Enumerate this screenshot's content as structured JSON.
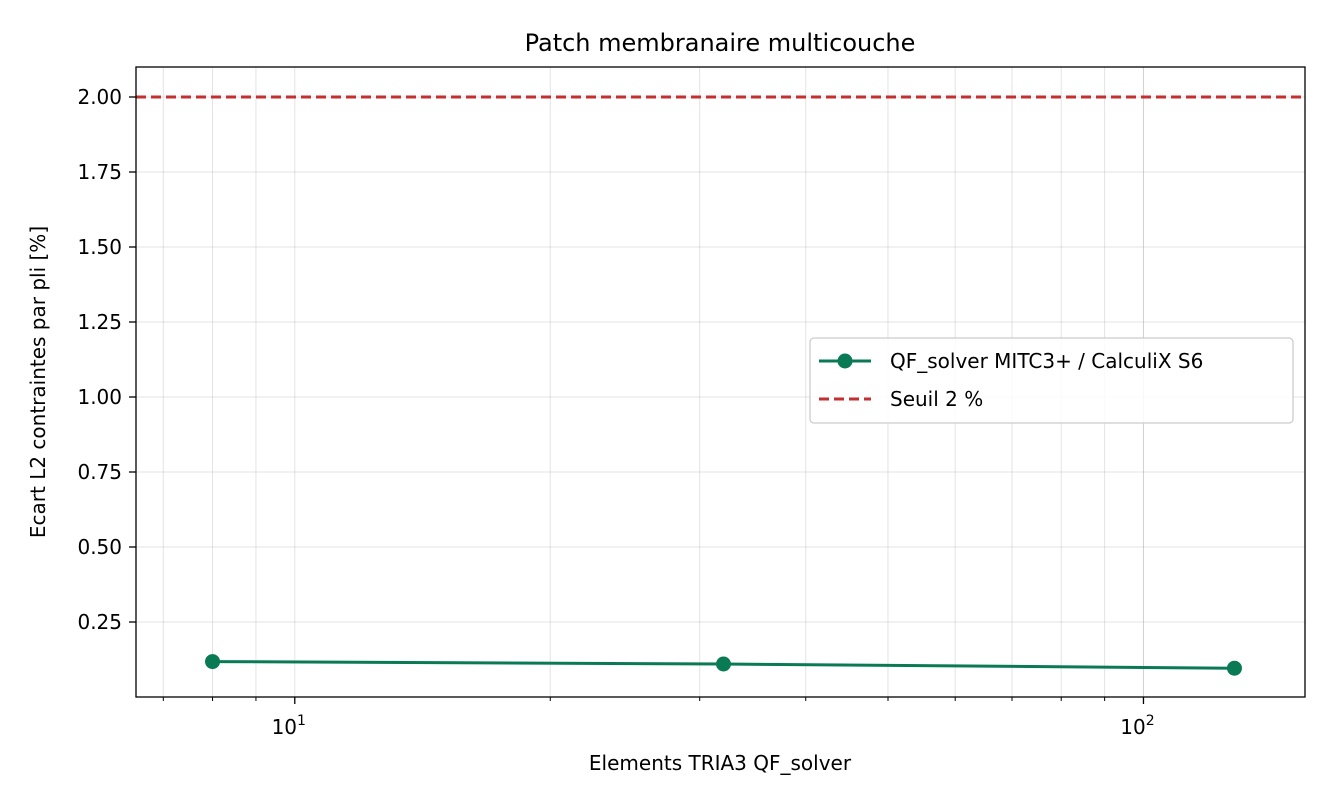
{
  "chart_data": {
    "type": "line",
    "title": "Patch membranaire multicouche",
    "xlabel": "Elements TRIA3 QF_solver",
    "ylabel": "Ecart L2 contraintes par pli [%]",
    "xscale": "log",
    "xlim": [
      6.5,
      155
    ],
    "ylim": [
      0,
      2.1
    ],
    "xticks": [
      {
        "value": 10,
        "base": "10",
        "exp": "1"
      },
      {
        "value": 100,
        "base": "10",
        "exp": "2"
      }
    ],
    "yticks": [
      0.25,
      0.5,
      0.75,
      1.0,
      1.25,
      1.5,
      1.75,
      2.0
    ],
    "ytick_labels": [
      "0.25",
      "0.50",
      "0.75",
      "1.00",
      "1.25",
      "1.50",
      "1.75",
      "2.00"
    ],
    "grid": true,
    "legend_position": "center-right",
    "series": [
      {
        "name": "QF_solver MITC3+ / CalculiX S6",
        "style": "line-marker",
        "color": "#0a7a55",
        "x": [
          8,
          32,
          128
        ],
        "y": [
          0.118,
          0.11,
          0.096
        ]
      },
      {
        "name": "Seuil 2 %",
        "style": "dashed-hline",
        "color": "#c62f2f",
        "y": 2.0
      }
    ]
  }
}
